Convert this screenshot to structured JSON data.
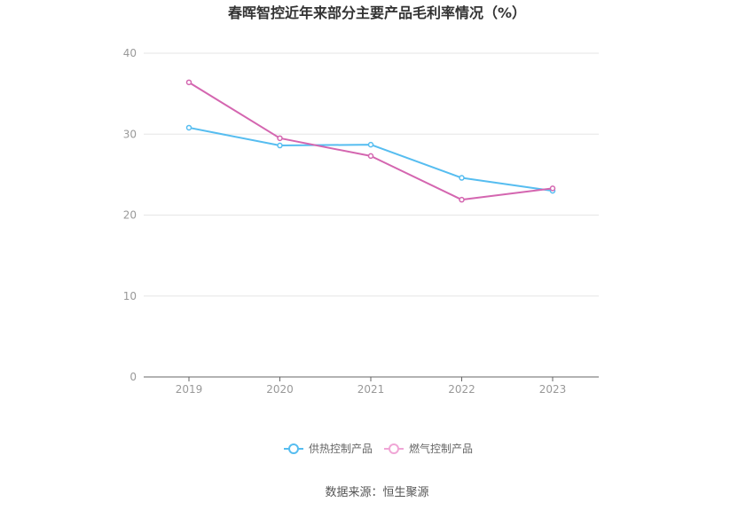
{
  "chart_data": {
    "type": "line",
    "title": "春晖智控近年来部分主要产品毛利率情况（%）",
    "x": [
      "2019",
      "2020",
      "2021",
      "2022",
      "2023"
    ],
    "ylim": [
      0,
      40
    ],
    "yticks": [
      0,
      10,
      20,
      30,
      40
    ],
    "grid": true,
    "legend_position": "bottom",
    "series": [
      {
        "name": "供热控制产品",
        "color": "#56BDF0",
        "values": [
          30.8,
          28.6,
          28.7,
          24.6,
          23.0
        ]
      },
      {
        "name": "燃气控制产品",
        "color": "#D466B0",
        "values": [
          36.4,
          29.5,
          27.3,
          21.9,
          23.3
        ]
      }
    ],
    "legend_colors": [
      "#56BDF0",
      "#F0A6D6"
    ]
  },
  "source_text": "数据来源：恒生聚源"
}
